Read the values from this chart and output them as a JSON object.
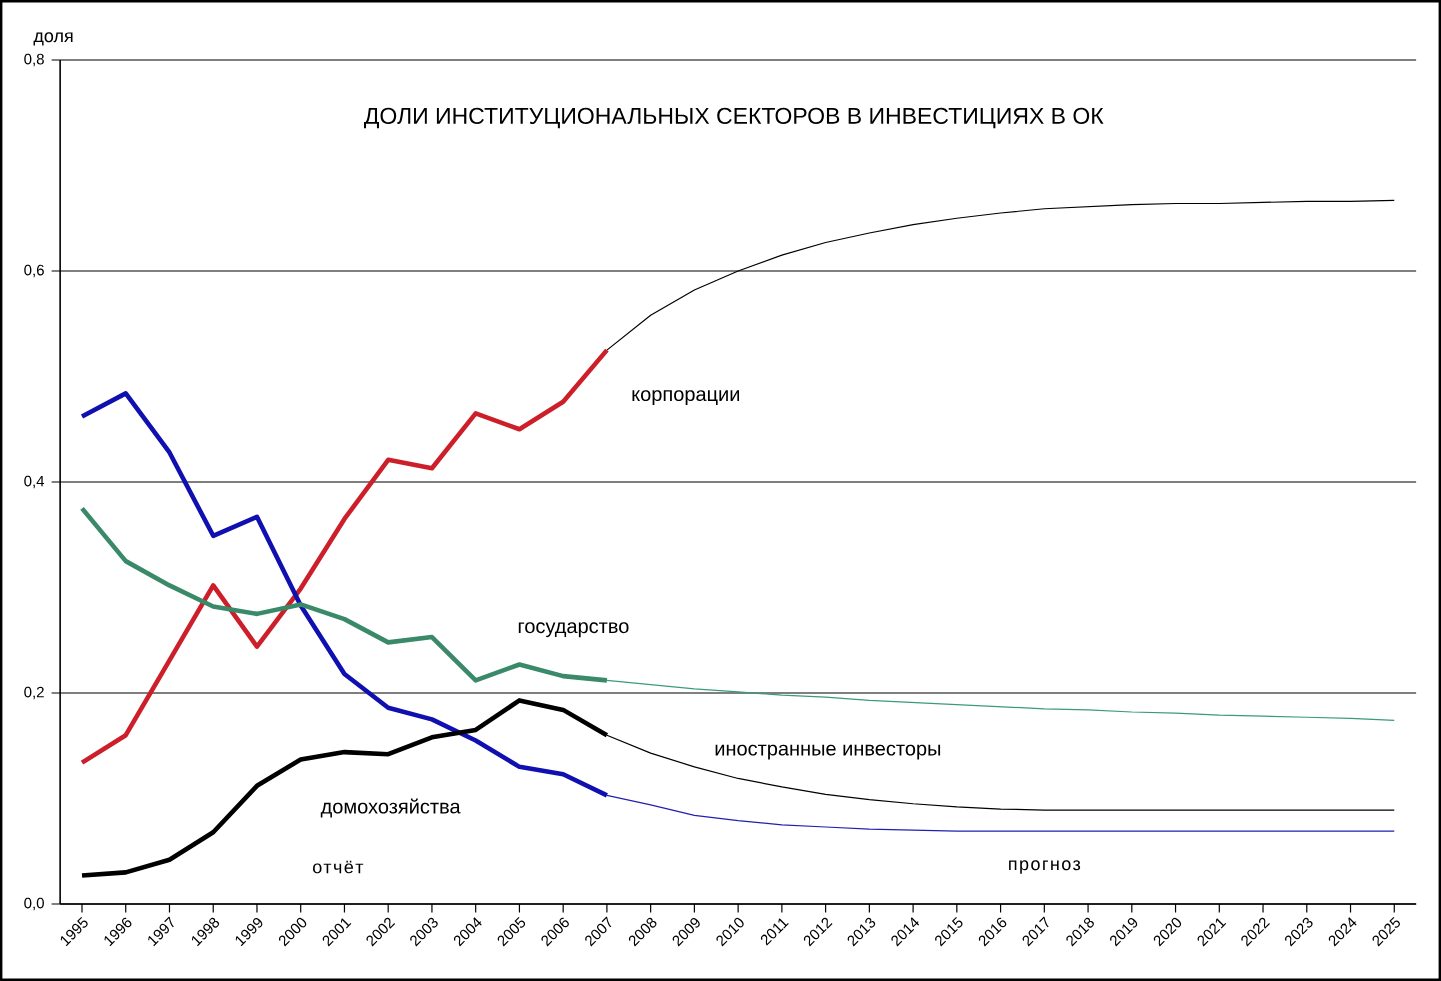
{
  "chart_data": {
    "type": "line",
    "title": "ДОЛИ ИНСТИТУЦИОНАЛЬНЫХ СЕКТОРОВ В ИНВЕСТИЦИЯХ В ОК",
    "ylabel": "доля",
    "categories": [
      "1995",
      "1996",
      "1997",
      "1998",
      "1999",
      "2000",
      "2001",
      "2002",
      "2003",
      "2004",
      "2005",
      "2006",
      "2007",
      "2008",
      "2009",
      "2010",
      "2011",
      "2012",
      "2013",
      "2014",
      "2015",
      "2016",
      "2017",
      "2018",
      "2019",
      "2020",
      "2021",
      "2022",
      "2023",
      "2024",
      "2025"
    ],
    "series": [
      {
        "name": "корпорации",
        "color": "#cc1f2a",
        "values": [
          0.134,
          0.16,
          0.231,
          0.302,
          0.244,
          0.299,
          0.365,
          0.421,
          0.413,
          0.465,
          0.45,
          0.476,
          0.525,
          null,
          null,
          null,
          null,
          null,
          null,
          null,
          null,
          null,
          null,
          null,
          null,
          null,
          null,
          null,
          null,
          null,
          null
        ]
      },
      {
        "color": "#1010b0",
        "values": [
          0.462,
          0.484,
          0.428,
          0.349,
          0.367,
          0.283,
          0.218,
          0.186,
          0.175,
          0.155,
          0.13,
          0.123,
          0.103,
          null,
          null,
          null,
          null,
          null,
          null,
          null,
          null,
          null,
          null,
          null,
          null,
          null,
          null,
          null,
          null,
          null,
          null
        ]
      },
      {
        "name": "государство",
        "color": "#3a8a6a",
        "values": [
          0.375,
          0.325,
          0.302,
          0.282,
          0.275,
          0.284,
          0.27,
          0.248,
          0.253,
          0.212,
          0.227,
          0.216,
          0.212,
          null,
          null,
          null,
          null,
          null,
          null,
          null,
          null,
          null,
          null,
          null,
          null,
          null,
          null,
          null,
          null,
          null,
          null
        ]
      },
      {
        "color": "#000000",
        "values": [
          0.027,
          0.03,
          0.042,
          0.068,
          0.112,
          0.137,
          0.144,
          0.142,
          0.158,
          0.165,
          0.193,
          0.184,
          0.16,
          null,
          null,
          null,
          null,
          null,
          null,
          null,
          null,
          null,
          null,
          null,
          null,
          null,
          null,
          null,
          null,
          null,
          null
        ]
      },
      {
        "color": "#000000",
        "values": [
          null,
          null,
          null,
          null,
          null,
          null,
          null,
          null,
          null,
          null,
          null,
          null,
          0.525,
          0.558,
          0.582,
          0.6,
          0.615,
          0.627,
          0.636,
          0.644,
          0.65,
          0.655,
          0.659,
          0.661,
          0.663,
          0.664,
          0.664,
          0.665,
          0.666,
          0.666,
          0.667
        ]
      },
      {
        "color": "#2020b0",
        "values": [
          null,
          null,
          null,
          null,
          null,
          null,
          null,
          null,
          null,
          null,
          null,
          null,
          0.103,
          0.094,
          0.084,
          0.079,
          0.075,
          0.073,
          0.071,
          0.07,
          0.069,
          0.069,
          0.069,
          0.069,
          0.069,
          0.069,
          0.069,
          0.069,
          0.069,
          0.069,
          0.069
        ]
      },
      {
        "color": "#3a9a7a",
        "values": [
          null,
          null,
          null,
          null,
          null,
          null,
          null,
          null,
          null,
          null,
          null,
          null,
          0.212,
          0.208,
          0.204,
          0.201,
          0.198,
          0.196,
          0.193,
          0.191,
          0.189,
          0.187,
          0.185,
          0.184,
          0.182,
          0.181,
          0.179,
          0.178,
          0.177,
          0.176,
          0.174
        ]
      },
      {
        "color": "#000000",
        "values": [
          null,
          null,
          null,
          null,
          null,
          null,
          null,
          null,
          null,
          null,
          null,
          null,
          0.16,
          0.143,
          0.13,
          0.119,
          0.111,
          0.104,
          0.099,
          0.095,
          0.092,
          0.09,
          0.089,
          0.089,
          0.089,
          0.089,
          0.089,
          0.089,
          0.089,
          0.089,
          0.089
        ]
      }
    ],
    "ylim": [
      0,
      0.8
    ],
    "yticks": [
      {
        "value": 0,
        "label": "0,0"
      },
      {
        "value": 0.2,
        "label": "0,2"
      },
      {
        "value": 0.4,
        "label": "0,4"
      },
      {
        "value": 0.6,
        "label": "0,6"
      },
      {
        "value": 0.8,
        "label": "0,8"
      }
    ],
    "grid": "y",
    "legend": false,
    "marker": "none",
    "line_style": "solid",
    "annotations": [
      "отчёт",
      "прогноз",
      "домохозяйства",
      "иностранные инвесторы"
    ]
  }
}
